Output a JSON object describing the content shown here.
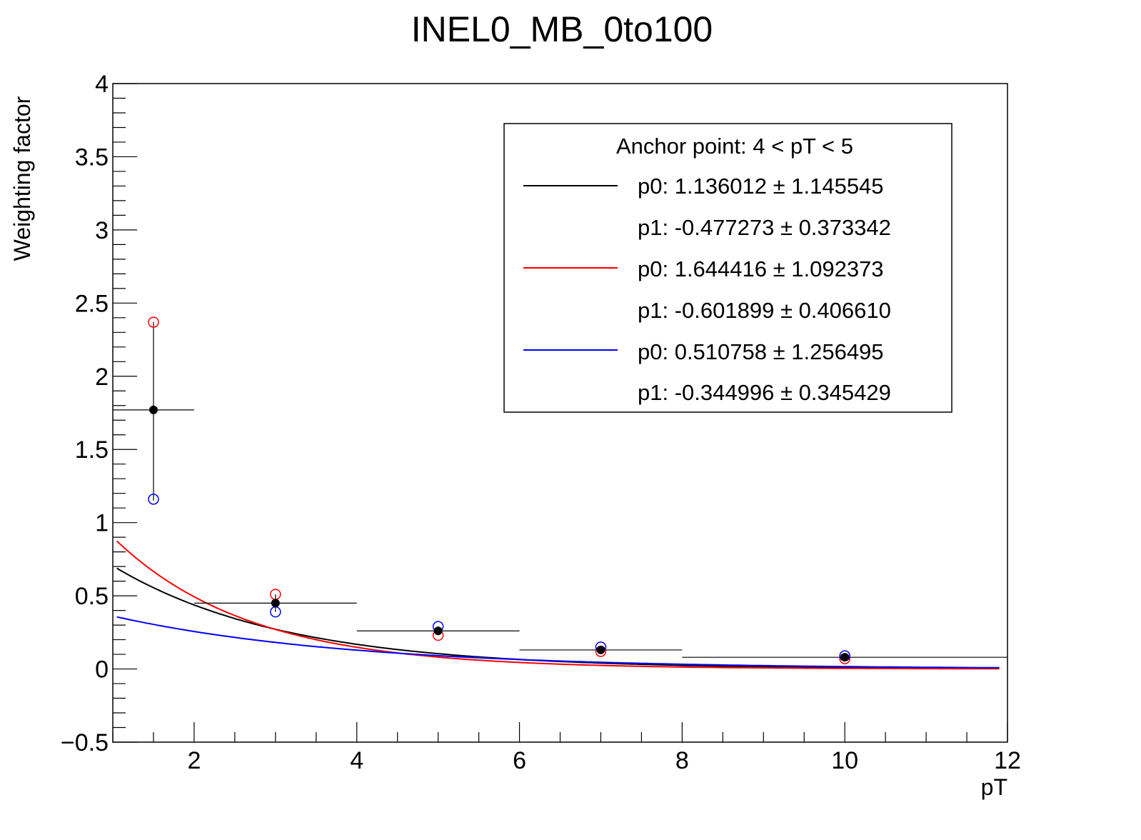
{
  "chart_data": {
    "type": "scatter",
    "title": "INEL0_MB_0to100",
    "xlabel": "pT",
    "ylabel": "Weighting factor",
    "xlim": [
      1,
      12
    ],
    "ylim": [
      -0.5,
      4
    ],
    "x_ticks": [
      "2",
      "4",
      "6",
      "8",
      "10",
      "12"
    ],
    "y_ticks": [
      "−0.5",
      "0",
      "0.5",
      "1",
      "1.5",
      "2",
      "2.5",
      "3",
      "3.5",
      "4"
    ],
    "grid": false,
    "legend": {
      "placement": "top-right",
      "header": "Anchor point: 4 < pT < 5",
      "entries": [
        {
          "color": "#000000",
          "lines": [
            "p0: 1.136012 ± 1.145545",
            "p1: -0.477273 ± 0.373342"
          ]
        },
        {
          "color": "#ff0000",
          "lines": [
            "p0: 1.644416 ± 1.092373",
            "p1: -0.601899 ± 0.406610"
          ]
        },
        {
          "color": "#0000ff",
          "lines": [
            "p0: 0.510758 ± 1.256495",
            "p1: -0.344996 ± 0.345429"
          ]
        }
      ]
    },
    "points_black": [
      {
        "x": 1.5,
        "y": 1.77,
        "xlow": 1,
        "xhigh": 2,
        "ylow": 1.15,
        "yhigh": 2.37
      },
      {
        "x": 3,
        "y": 0.45,
        "xlow": 2,
        "xhigh": 4,
        "ylow": 0.39,
        "yhigh": 0.51
      },
      {
        "x": 5,
        "y": 0.26,
        "xlow": 4,
        "xhigh": 6,
        "ylow": 0.23,
        "yhigh": 0.29
      },
      {
        "x": 7,
        "y": 0.13,
        "xlow": 6,
        "xhigh": 8,
        "ylow": 0.12,
        "yhigh": 0.15
      },
      {
        "x": 10,
        "y": 0.08,
        "xlow": 8,
        "xhigh": 12,
        "ylow": 0.07,
        "yhigh": 0.09
      }
    ],
    "points_red": [
      {
        "x": 1.5,
        "y": 2.37
      },
      {
        "x": 3,
        "y": 0.51
      },
      {
        "x": 5,
        "y": 0.23
      },
      {
        "x": 7,
        "y": 0.12
      },
      {
        "x": 10,
        "y": 0.07
      }
    ],
    "points_blue": [
      {
        "x": 1.5,
        "y": 1.16
      },
      {
        "x": 3,
        "y": 0.39
      },
      {
        "x": 5,
        "y": 0.29
      },
      {
        "x": 7,
        "y": 0.15
      },
      {
        "x": 10,
        "y": 0.09
      }
    ],
    "fits": [
      {
        "color": "#000000",
        "p0": 1.136012,
        "p1": -0.477273
      },
      {
        "color": "#ff0000",
        "p0": 1.644416,
        "p1": -0.601899
      },
      {
        "color": "#0000ff",
        "p0": 0.510758,
        "p1": -0.344996
      }
    ]
  }
}
